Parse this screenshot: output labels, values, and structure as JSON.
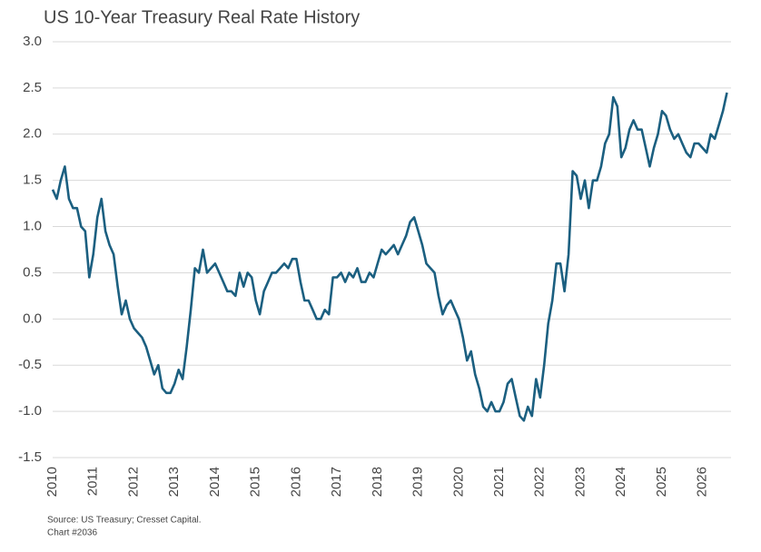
{
  "chart_data": {
    "type": "line",
    "title": "US 10-Year Treasury Real Rate History",
    "source": "Source: US Treasury; Cresset Capital.",
    "note": "Chart #2036",
    "grid": true,
    "xlim": [
      2010,
      2026.7
    ],
    "xticks": [
      2010,
      2011,
      2012,
      2013,
      2014,
      2015,
      2016,
      2017,
      2018,
      2019,
      2020,
      2021,
      2022,
      2023,
      2024,
      2025,
      2026
    ],
    "ylim": [
      -1.5,
      3.0
    ],
    "yticks": [
      {
        "value": -1.5,
        "label": "-1.5"
      },
      {
        "value": -1.0,
        "label": "-1.0"
      },
      {
        "value": -0.5,
        "label": "-0.5"
      },
      {
        "value": 0,
        "label": "0.0"
      },
      {
        "value": 0.5,
        "label": "0.5"
      },
      {
        "value": 1.0,
        "label": "1.0"
      },
      {
        "value": 1.5,
        "label": "1.5"
      },
      {
        "value": 2.0,
        "label": "2.0"
      },
      {
        "value": 2.5,
        "label": "2.5"
      },
      {
        "value": 3.0,
        "label": "3.0"
      }
    ],
    "x": [
      2010.0,
      2010.1,
      2010.2,
      2010.3,
      2010.4,
      2010.5,
      2010.6,
      2010.7,
      2010.8,
      2010.9,
      2011.0,
      2011.1,
      2011.2,
      2011.3,
      2011.4,
      2011.5,
      2011.6,
      2011.7,
      2011.8,
      2011.9,
      2012.0,
      2012.1,
      2012.2,
      2012.3,
      2012.4,
      2012.5,
      2012.6,
      2012.7,
      2012.8,
      2012.9,
      2013.0,
      2013.1,
      2013.2,
      2013.3,
      2013.4,
      2013.5,
      2013.6,
      2013.7,
      2013.8,
      2013.9,
      2014.0,
      2014.1,
      2014.2,
      2014.3,
      2014.4,
      2014.5,
      2014.6,
      2014.7,
      2014.8,
      2014.9,
      2015.0,
      2015.1,
      2015.2,
      2015.3,
      2015.4,
      2015.5,
      2015.6,
      2015.7,
      2015.8,
      2015.9,
      2016.0,
      2016.1,
      2016.2,
      2016.3,
      2016.4,
      2016.5,
      2016.6,
      2016.7,
      2016.8,
      2016.9,
      2017.0,
      2017.1,
      2017.2,
      2017.3,
      2017.4,
      2017.5,
      2017.6,
      2017.7,
      2017.8,
      2017.9,
      2018.0,
      2018.1,
      2018.2,
      2018.3,
      2018.4,
      2018.5,
      2018.6,
      2018.7,
      2018.8,
      2018.9,
      2019.0,
      2019.1,
      2019.2,
      2019.3,
      2019.4,
      2019.5,
      2019.6,
      2019.7,
      2019.8,
      2019.9,
      2020.0,
      2020.1,
      2020.2,
      2020.3,
      2020.4,
      2020.5,
      2020.6,
      2020.7,
      2020.8,
      2020.9,
      2021.0,
      2021.1,
      2021.2,
      2021.3,
      2021.4,
      2021.5,
      2021.6,
      2021.7,
      2021.8,
      2021.9,
      2022.0,
      2022.1,
      2022.2,
      2022.3,
      2022.4,
      2022.5,
      2022.6,
      2022.7,
      2022.8,
      2022.9,
      2023.0,
      2023.1,
      2023.2,
      2023.3,
      2023.4,
      2023.5,
      2023.6,
      2023.7,
      2023.8,
      2023.9,
      2024.0,
      2024.1,
      2024.2,
      2024.3,
      2024.4,
      2024.5,
      2024.6,
      2024.7,
      2024.8,
      2024.9,
      2025.0,
      2025.1,
      2025.2,
      2025.3,
      2025.4,
      2025.5,
      2025.6,
      2025.7,
      2025.8,
      2025.9,
      2026.0,
      2026.1,
      2026.2,
      2026.3,
      2026.4,
      2026.5,
      2026.6
    ],
    "series": [
      {
        "color": "#1b5f80",
        "values": [
          1.4,
          1.3,
          1.5,
          1.65,
          1.3,
          1.2,
          1.2,
          1.0,
          0.95,
          0.45,
          0.7,
          1.1,
          1.3,
          0.95,
          0.8,
          0.7,
          0.35,
          0.05,
          0.2,
          0.0,
          -0.1,
          -0.15,
          -0.2,
          -0.3,
          -0.45,
          -0.6,
          -0.5,
          -0.75,
          -0.8,
          -0.8,
          -0.7,
          -0.55,
          -0.65,
          -0.3,
          0.1,
          0.55,
          0.5,
          0.75,
          0.5,
          0.55,
          0.6,
          0.5,
          0.4,
          0.3,
          0.3,
          0.25,
          0.5,
          0.35,
          0.5,
          0.45,
          0.2,
          0.05,
          0.3,
          0.4,
          0.5,
          0.5,
          0.55,
          0.6,
          0.55,
          0.65,
          0.65,
          0.4,
          0.2,
          0.2,
          0.1,
          0.0,
          0.0,
          0.1,
          0.05,
          0.45,
          0.45,
          0.5,
          0.4,
          0.5,
          0.45,
          0.55,
          0.4,
          0.4,
          0.5,
          0.45,
          0.6,
          0.75,
          0.7,
          0.75,
          0.8,
          0.7,
          0.8,
          0.9,
          1.05,
          1.1,
          0.95,
          0.8,
          0.6,
          0.55,
          0.5,
          0.25,
          0.05,
          0.15,
          0.2,
          0.1,
          0.0,
          -0.2,
          -0.45,
          -0.35,
          -0.6,
          -0.75,
          -0.95,
          -1.0,
          -0.9,
          -1.0,
          -1.0,
          -0.9,
          -0.7,
          -0.65,
          -0.85,
          -1.05,
          -1.1,
          -0.95,
          -1.05,
          -0.65,
          -0.85,
          -0.5,
          -0.05,
          0.2,
          0.6,
          0.6,
          0.3,
          0.7,
          1.6,
          1.55,
          1.3,
          1.5,
          1.2,
          1.5,
          1.5,
          1.65,
          1.9,
          2.0,
          2.4,
          2.3,
          1.75,
          1.85,
          2.05,
          2.15,
          2.05,
          2.05,
          1.85,
          1.65,
          1.85,
          2.0,
          2.25,
          2.2,
          2.05,
          1.95,
          2.0,
          1.9,
          1.8,
          1.75,
          1.9,
          1.9,
          1.85,
          1.8,
          2.0,
          1.95,
          2.1,
          2.25,
          2.45
        ]
      }
    ]
  }
}
